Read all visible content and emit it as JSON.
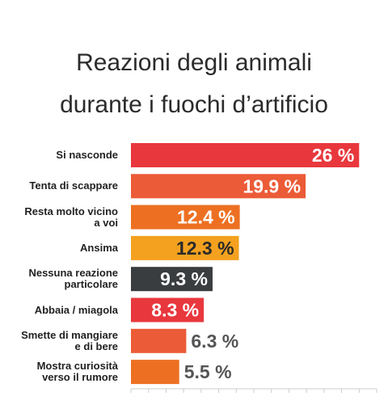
{
  "chart_data": {
    "type": "bar",
    "orientation": "horizontal",
    "title": "Reazioni degli animali\ndurante i fuochi d’artificio",
    "categories": [
      "Si nasconde",
      "Tenta di scappare",
      "Resta molto vicino\na voi",
      "Ansima",
      "Nessuna reazione\nparticolare",
      "Abbaia / miagola",
      "Smette di mangiare\ne di bere",
      "Mostra curiosità\nverso il rumore"
    ],
    "values": [
      26,
      19.9,
      12.4,
      12.3,
      9.3,
      8.3,
      6.3,
      5.5
    ],
    "value_labels": [
      "26 %",
      "19.9 %",
      "12.4 %",
      "12.3 %",
      "9.3 %",
      "8.3 %",
      "6.3 %",
      "5.5 %"
    ],
    "colors": [
      "#e8383d",
      "#ec5b37",
      "#ed7022",
      "#f4a11f",
      "#3a3d40",
      "#e8383d",
      "#ec5b37",
      "#ed7022"
    ],
    "label_colors": [
      "#ffffff",
      "#ffffff",
      "#ffffff",
      "#2a2a2a",
      "#ffffff",
      "#ffffff",
      "#555555",
      "#555555"
    ],
    "xlim": [
      0,
      28
    ],
    "xticks": [
      0,
      2,
      4,
      6,
      8,
      10,
      12,
      14,
      16,
      18,
      20,
      22,
      24,
      26,
      28
    ]
  }
}
